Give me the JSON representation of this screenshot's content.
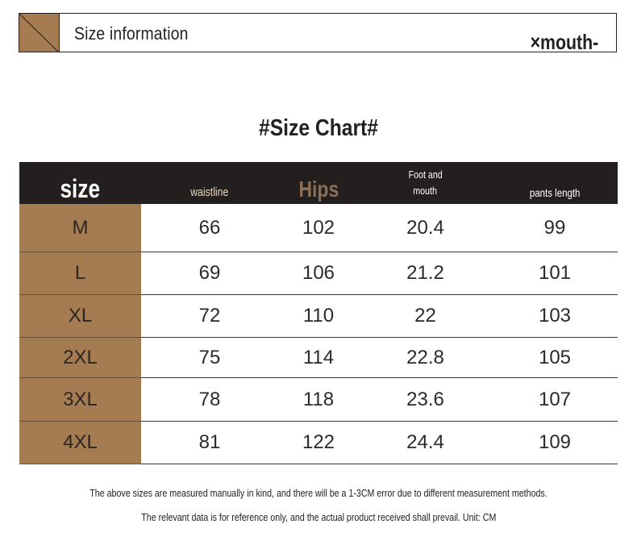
{
  "banner": {
    "title": "Size information",
    "tag": "×mouth-"
  },
  "chart_title": "#Size Chart#",
  "table": {
    "headers": {
      "size": "size",
      "waist": "waistline",
      "hips": "Hips",
      "foot_line1": "Foot and",
      "foot_line2": "mouth",
      "pants": "pants length"
    },
    "rows": [
      {
        "size": "M",
        "waist": "66",
        "hips": "102",
        "foot": "20.4",
        "pants": "99"
      },
      {
        "size": "L",
        "waist": "69",
        "hips": "106",
        "foot": "21.2",
        "pants": "101"
      },
      {
        "size": "XL",
        "waist": "72",
        "hips": "110",
        "foot": "22",
        "pants": "103"
      },
      {
        "size": "2XL",
        "waist": "75",
        "hips": "114",
        "foot": "22.8",
        "pants": "105"
      },
      {
        "size": "3XL",
        "waist": "78",
        "hips": "118",
        "foot": "23.6",
        "pants": "107"
      },
      {
        "size": "4XL",
        "waist": "81",
        "hips": "122",
        "foot": "24.4",
        "pants": "109"
      }
    ]
  },
  "notes": {
    "line1": "The above sizes are measured manually in kind, and there will be a 1-3CM error due to different measurement methods.",
    "line2": "The relevant data is for reference only, and the actual product received shall prevail. Unit: CM"
  },
  "colors": {
    "accent_brown": "#a57b52",
    "header_dark": "#231f1e"
  }
}
